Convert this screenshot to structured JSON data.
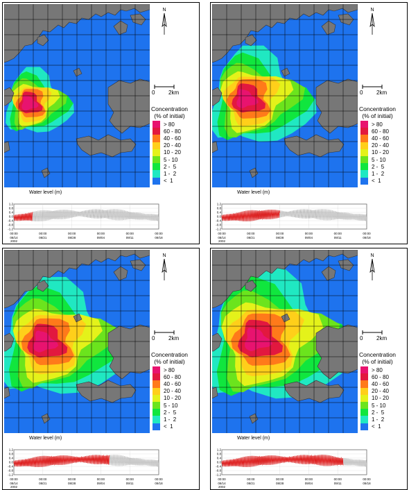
{
  "colors": {
    "land": "#777777",
    "water": "#1e73ee",
    "red": "#dd1111",
    "bands": [
      "#e8136f",
      "#e2183f",
      "#ff7a1a",
      "#ffcf1a",
      "#e4f21a",
      "#6be41d",
      "#10e63e",
      "#20e8c2",
      "#1e73ee"
    ]
  },
  "legend": {
    "title": "Concentration",
    "subtitle": "(% of initial)",
    "items": [
      "> 80",
      "60 - 80",
      "40 - 60",
      "20 - 40",
      "10 - 20",
      "5 - 10",
      "2 -  5",
      "1 -  2",
      "<  1"
    ]
  },
  "north_label": "N",
  "scale_bar": {
    "start": "0",
    "end": "2km"
  },
  "water_level": {
    "title": "Water level (m)",
    "y_ticks": [
      "1.2",
      "0.8",
      "0.4",
      "0.0",
      "-0.4",
      "-0.8",
      "-1.2"
    ],
    "x_ticks": [
      {
        "time": "00:00",
        "date": "08/14"
      },
      {
        "time": "00:00",
        "date": "08/21"
      },
      {
        "time": "00:00",
        "date": "08/28"
      },
      {
        "time": "00:00",
        "date": "09/04"
      },
      {
        "time": "00:00",
        "date": "09/11"
      },
      {
        "time": "00:00",
        "date": "09/18"
      }
    ],
    "year": "2002"
  },
  "panels": [
    {
      "id": "p1",
      "progress": 0.13,
      "spread": 0.35
    },
    {
      "id": "p2",
      "progress": 0.4,
      "spread": 0.65
    },
    {
      "id": "p3",
      "progress": 0.66,
      "spread": 0.85
    },
    {
      "id": "p4",
      "progress": 0.84,
      "spread": 1.0
    }
  ]
}
